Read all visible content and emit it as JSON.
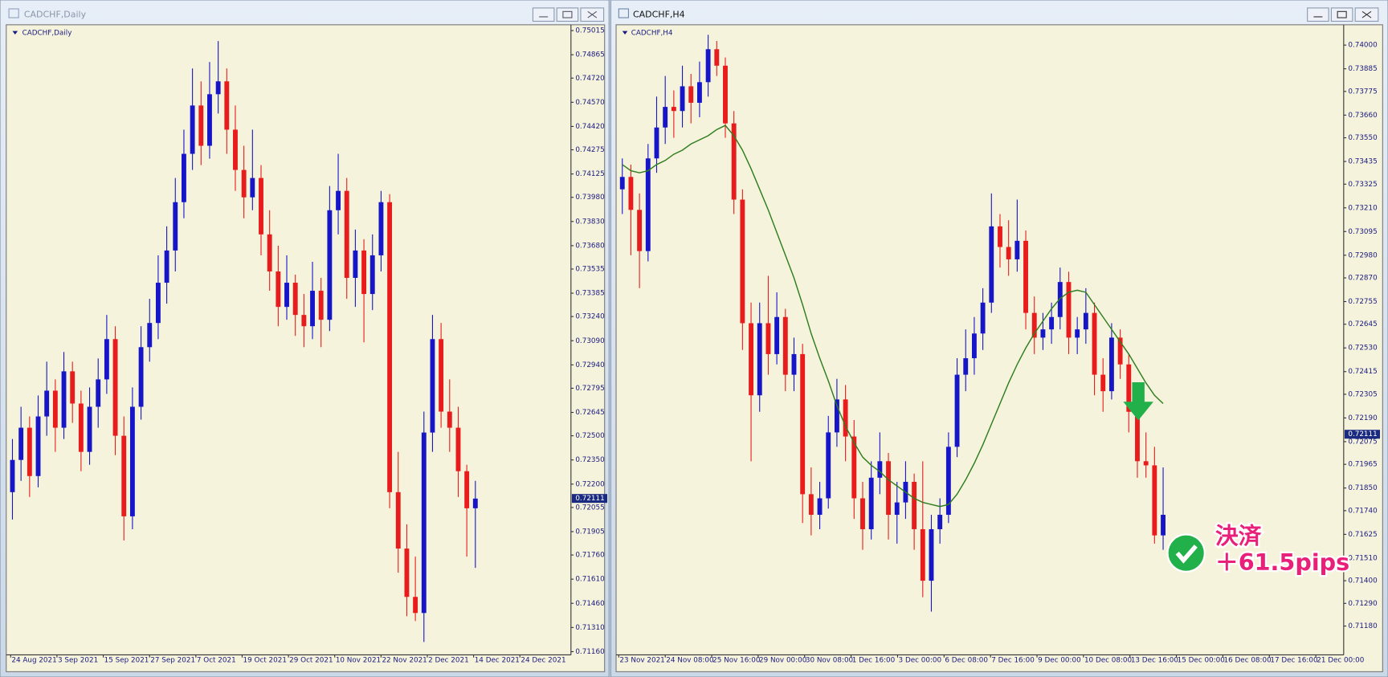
{
  "windows": [
    {
      "title": "CADCHF,Daily"
    },
    {
      "title": "CADCHF,H4"
    }
  ],
  "chart_data": [
    {
      "type": "candlestick",
      "title": "CADCHF,Daily",
      "up_color": "#1616c8",
      "down_color": "#e81c1c",
      "ylim": [
        0.7114,
        0.7504
      ],
      "yticks": [
        {
          "value": 0.7116,
          "label": "0.71160"
        },
        {
          "value": 0.7131,
          "label": "0.71310"
        },
        {
          "value": 0.7146,
          "label": "0.71460"
        },
        {
          "value": 0.7161,
          "label": "0.71610"
        },
        {
          "value": 0.7176,
          "label": "0.71760"
        },
        0.71905,
        0.72055,
        {
          "value": 0.722,
          "label": "0.72200"
        },
        {
          "value": 0.7235,
          "label": "0.72350"
        },
        {
          "value": 0.725,
          "label": "0.72500"
        },
        0.72645,
        0.72795,
        {
          "value": 0.7294,
          "label": "0.72940"
        },
        {
          "value": 0.7309,
          "label": "0.73090"
        },
        {
          "value": 0.7324,
          "label": "0.73240"
        },
        0.73385,
        0.73535,
        {
          "value": 0.7368,
          "label": "0.73680"
        },
        {
          "value": 0.7383,
          "label": "0.73830"
        },
        {
          "value": 0.7398,
          "label": "0.73980"
        },
        0.74125,
        0.74275,
        {
          "value": 0.7442,
          "label": "0.74420"
        },
        {
          "value": 0.7457,
          "label": "0.74570"
        },
        {
          "value": 0.7472,
          "label": "0.74720"
        },
        0.74865,
        0.75015
      ],
      "current_price": 0.72111,
      "xlabels": [
        "24 Aug 2021",
        "3 Sep 2021",
        "15 Sep 2021",
        "27 Sep 2021",
        "7 Oct 2021",
        "19 Oct 2021",
        "29 Oct 2021",
        "10 Nov 2021",
        "22 Nov 2021",
        "2 Dec 2021",
        "14 Dec 2021",
        "24 Dec 2021"
      ],
      "candles": [
        [
          0.7215,
          0.7248,
          0.7198,
          0.7235
        ],
        [
          0.7235,
          0.7268,
          0.7222,
          0.7255
        ],
        [
          0.7255,
          0.7262,
          0.7212,
          0.7225
        ],
        [
          0.7225,
          0.7275,
          0.7218,
          0.7262
        ],
        [
          0.7262,
          0.7296,
          0.725,
          0.7278
        ],
        [
          0.7278,
          0.7285,
          0.724,
          0.7255
        ],
        [
          0.7255,
          0.7302,
          0.7248,
          0.729
        ],
        [
          0.729,
          0.7296,
          0.7258,
          0.727
        ],
        [
          0.727,
          0.7278,
          0.7228,
          0.724
        ],
        [
          0.724,
          0.728,
          0.7232,
          0.7268
        ],
        [
          0.7268,
          0.7298,
          0.7255,
          0.7285
        ],
        [
          0.7285,
          0.7325,
          0.7276,
          0.731
        ],
        [
          0.731,
          0.7318,
          0.7238,
          0.725
        ],
        [
          0.725,
          0.7262,
          0.7185,
          0.72
        ],
        [
          0.72,
          0.728,
          0.7192,
          0.7268
        ],
        [
          0.7268,
          0.7318,
          0.726,
          0.7305
        ],
        [
          0.7305,
          0.7335,
          0.7296,
          0.732
        ],
        [
          0.732,
          0.7362,
          0.731,
          0.7345
        ],
        [
          0.7345,
          0.738,
          0.7332,
          0.7365
        ],
        [
          0.7365,
          0.741,
          0.7352,
          0.7395
        ],
        [
          0.7395,
          0.744,
          0.7385,
          0.7425
        ],
        [
          0.7425,
          0.7478,
          0.7415,
          0.7455
        ],
        [
          0.7455,
          0.747,
          0.7418,
          0.743
        ],
        [
          0.743,
          0.7482,
          0.7422,
          0.7462
        ],
        [
          0.7462,
          0.7495,
          0.745,
          0.747
        ],
        [
          0.747,
          0.7478,
          0.7425,
          0.744
        ],
        [
          0.744,
          0.7455,
          0.7402,
          0.7415
        ],
        [
          0.7415,
          0.743,
          0.7385,
          0.7398
        ],
        [
          0.7398,
          0.744,
          0.739,
          0.741
        ],
        [
          0.741,
          0.7418,
          0.7362,
          0.7375
        ],
        [
          0.7375,
          0.739,
          0.734,
          0.7352
        ],
        [
          0.7352,
          0.7368,
          0.7318,
          0.733
        ],
        [
          0.733,
          0.7362,
          0.7322,
          0.7345
        ],
        [
          0.7345,
          0.735,
          0.7312,
          0.7325
        ],
        [
          0.7325,
          0.7338,
          0.7305,
          0.7318
        ],
        [
          0.7318,
          0.7358,
          0.731,
          0.734
        ],
        [
          0.734,
          0.7348,
          0.7305,
          0.7322
        ],
        [
          0.7322,
          0.7405,
          0.7315,
          0.739
        ],
        [
          0.739,
          0.7425,
          0.7375,
          0.7402
        ],
        [
          0.7402,
          0.741,
          0.7335,
          0.7348
        ],
        [
          0.7348,
          0.7378,
          0.733,
          0.7365
        ],
        [
          0.7365,
          0.7372,
          0.7308,
          0.7338
        ],
        [
          0.7338,
          0.7375,
          0.7328,
          0.7362
        ],
        [
          0.7362,
          0.7402,
          0.7352,
          0.7395
        ],
        [
          0.7395,
          0.74,
          0.7205,
          0.7215
        ],
        [
          0.7215,
          0.724,
          0.7165,
          0.718
        ],
        [
          0.718,
          0.7195,
          0.7138,
          0.715
        ],
        [
          0.715,
          0.7175,
          0.7135,
          0.714
        ],
        [
          0.714,
          0.7265,
          0.7122,
          0.7252
        ],
        [
          0.7252,
          0.7325,
          0.724,
          0.731
        ],
        [
          0.731,
          0.732,
          0.7255,
          0.7265
        ],
        [
          0.7265,
          0.7285,
          0.724,
          0.7255
        ],
        [
          0.7255,
          0.7268,
          0.7212,
          0.7228
        ],
        [
          0.7228,
          0.7232,
          0.7175,
          0.7205
        ],
        [
          0.7205,
          0.7222,
          0.7168,
          0.7211
        ]
      ]
    },
    {
      "type": "candlestick",
      "title": "CADCHF,H4",
      "up_color": "#1616c8",
      "down_color": "#e81c1c",
      "ylim": [
        0.7104,
        0.7409
      ],
      "yticks": [
        {
          "value": 0.7118,
          "label": "0.71180"
        },
        {
          "value": 0.7129,
          "label": "0.71290"
        },
        {
          "value": 0.714,
          "label": "0.71400"
        },
        {
          "value": 0.7151,
          "label": "0.71510"
        },
        0.71625,
        {
          "value": 0.7174,
          "label": "0.71740"
        },
        {
          "value": 0.7185,
          "label": "0.71850"
        },
        0.71965,
        0.72075,
        {
          "value": 0.7219,
          "label": "0.72190"
        },
        0.72305,
        0.72415,
        {
          "value": 0.7253,
          "label": "0.72530"
        },
        0.72645,
        0.72755,
        {
          "value": 0.7287,
          "label": "0.72870"
        },
        {
          "value": 0.7298,
          "label": "0.72980"
        },
        0.73095,
        {
          "value": 0.7321,
          "label": "0.73210"
        },
        0.73325,
        0.73435,
        {
          "value": 0.7355,
          "label": "0.73550"
        },
        {
          "value": 0.7366,
          "label": "0.73660"
        },
        0.73775,
        0.73885,
        {
          "value": 0.74,
          "label": "0.74000"
        }
      ],
      "current_price": 0.72111,
      "xlabels": [
        "23 Nov 2021",
        "24 Nov 08:00",
        "25 Nov 16:00",
        "29 Nov 00:00",
        "30 Nov 08:00",
        "1 Dec 16:00",
        "3 Dec 00:00",
        "6 Dec 08:00",
        "7 Dec 16:00",
        "9 Dec 00:00",
        "10 Dec 08:00",
        "13 Dec 16:00",
        "15 Dec 00:00",
        "16 Dec 08:00",
        "17 Dec 16:00",
        "21 Dec 00:00"
      ],
      "candles": [
        [
          0.733,
          0.7345,
          0.7318,
          0.7336
        ],
        [
          0.7336,
          0.7342,
          0.7298,
          0.732
        ],
        [
          0.732,
          0.7328,
          0.7282,
          0.73
        ],
        [
          0.73,
          0.7352,
          0.7295,
          0.7345
        ],
        [
          0.7345,
          0.7375,
          0.7338,
          0.736
        ],
        [
          0.736,
          0.7385,
          0.7352,
          0.737
        ],
        [
          0.737,
          0.7378,
          0.7355,
          0.7368
        ],
        [
          0.7368,
          0.739,
          0.736,
          0.738
        ],
        [
          0.738,
          0.7386,
          0.7362,
          0.7372
        ],
        [
          0.7372,
          0.7392,
          0.7365,
          0.7382
        ],
        [
          0.7382,
          0.7405,
          0.7375,
          0.7398
        ],
        [
          0.7398,
          0.7402,
          0.7385,
          0.739
        ],
        [
          0.739,
          0.7394,
          0.7355,
          0.7362
        ],
        [
          0.7362,
          0.7368,
          0.7318,
          0.7325
        ],
        [
          0.7325,
          0.733,
          0.7252,
          0.7265
        ],
        [
          0.7265,
          0.7275,
          0.7198,
          0.723
        ],
        [
          0.723,
          0.7275,
          0.7222,
          0.7265
        ],
        [
          0.7265,
          0.7288,
          0.724,
          0.725
        ],
        [
          0.725,
          0.728,
          0.7245,
          0.7268
        ],
        [
          0.7268,
          0.7272,
          0.7232,
          0.724
        ],
        [
          0.724,
          0.7258,
          0.7232,
          0.725
        ],
        [
          0.725,
          0.7255,
          0.7168,
          0.7182
        ],
        [
          0.7182,
          0.7195,
          0.7162,
          0.7172
        ],
        [
          0.7172,
          0.7188,
          0.7165,
          0.718
        ],
        [
          0.718,
          0.722,
          0.7175,
          0.7212
        ],
        [
          0.7212,
          0.7238,
          0.7205,
          0.7228
        ],
        [
          0.7228,
          0.7235,
          0.7198,
          0.721
        ],
        [
          0.721,
          0.7218,
          0.717,
          0.718
        ],
        [
          0.718,
          0.7188,
          0.7155,
          0.7165
        ],
        [
          0.7165,
          0.7198,
          0.716,
          0.719
        ],
        [
          0.719,
          0.7212,
          0.7182,
          0.7198
        ],
        [
          0.7198,
          0.7202,
          0.716,
          0.7172
        ],
        [
          0.7172,
          0.7188,
          0.7158,
          0.7178
        ],
        [
          0.7178,
          0.7198,
          0.717,
          0.7188
        ],
        [
          0.7188,
          0.7192,
          0.7155,
          0.7165
        ],
        [
          0.7165,
          0.7198,
          0.7132,
          0.714
        ],
        [
          0.714,
          0.7172,
          0.7125,
          0.7165
        ],
        [
          0.7165,
          0.718,
          0.7158,
          0.7172
        ],
        [
          0.7172,
          0.7212,
          0.7168,
          0.7205
        ],
        [
          0.7205,
          0.7248,
          0.72,
          0.724
        ],
        [
          0.724,
          0.7262,
          0.7232,
          0.7248
        ],
        [
          0.7248,
          0.7268,
          0.724,
          0.726
        ],
        [
          0.726,
          0.7282,
          0.7252,
          0.7275
        ],
        [
          0.7275,
          0.7328,
          0.727,
          0.7312
        ],
        [
          0.7312,
          0.7318,
          0.7292,
          0.7302
        ],
        [
          0.7302,
          0.7315,
          0.7288,
          0.7296
        ],
        [
          0.7296,
          0.7325,
          0.729,
          0.7305
        ],
        [
          0.7305,
          0.731,
          0.7262,
          0.727
        ],
        [
          0.727,
          0.7278,
          0.725,
          0.7258
        ],
        [
          0.7258,
          0.727,
          0.7252,
          0.7262
        ],
        [
          0.7262,
          0.7275,
          0.7255,
          0.7268
        ],
        [
          0.7268,
          0.7292,
          0.7262,
          0.7285
        ],
        [
          0.7285,
          0.729,
          0.725,
          0.7258
        ],
        [
          0.7258,
          0.7268,
          0.725,
          0.7262
        ],
        [
          0.7262,
          0.7282,
          0.7255,
          0.727
        ],
        [
          0.727,
          0.7275,
          0.723,
          0.724
        ],
        [
          0.724,
          0.7248,
          0.7222,
          0.7232
        ],
        [
          0.7232,
          0.7265,
          0.7228,
          0.7258
        ],
        [
          0.7258,
          0.7262,
          0.7238,
          0.7245
        ],
        [
          0.7245,
          0.725,
          0.7212,
          0.7222
        ],
        [
          0.7222,
          0.7232,
          0.719,
          0.7198
        ],
        [
          0.7198,
          0.7212,
          0.719,
          0.7196
        ],
        [
          0.7196,
          0.7205,
          0.7158,
          0.7162
        ],
        [
          0.7162,
          0.7195,
          0.7155,
          0.7172
        ]
      ],
      "ma": {
        "color": "#2e7d1e",
        "values": [
          0.7342,
          0.7339,
          0.7338,
          0.7339,
          0.7342,
          0.7344,
          0.7347,
          0.7349,
          0.7352,
          0.7354,
          0.7356,
          0.7359,
          0.7361,
          0.7356,
          0.7349,
          0.734,
          0.733,
          0.732,
          0.7309,
          0.7298,
          0.7287,
          0.7274,
          0.726,
          0.7248,
          0.7237,
          0.7225,
          0.7215,
          0.7207,
          0.72,
          0.7196,
          0.7193,
          0.7189,
          0.7186,
          0.7183,
          0.718,
          0.7178,
          0.7177,
          0.7176,
          0.7177,
          0.7182,
          0.7189,
          0.7197,
          0.7206,
          0.7216,
          0.7226,
          0.7236,
          0.7245,
          0.7253,
          0.726,
          0.7266,
          0.7272,
          0.7277,
          0.728,
          0.7281,
          0.728,
          0.7274,
          0.7268,
          0.7262,
          0.7256,
          0.725,
          0.7243,
          0.7236,
          0.723,
          0.7226
        ]
      },
      "annotations": [
        {
          "text": "決済"
        },
        {
          "text": "＋61.5pips"
        }
      ]
    }
  ]
}
